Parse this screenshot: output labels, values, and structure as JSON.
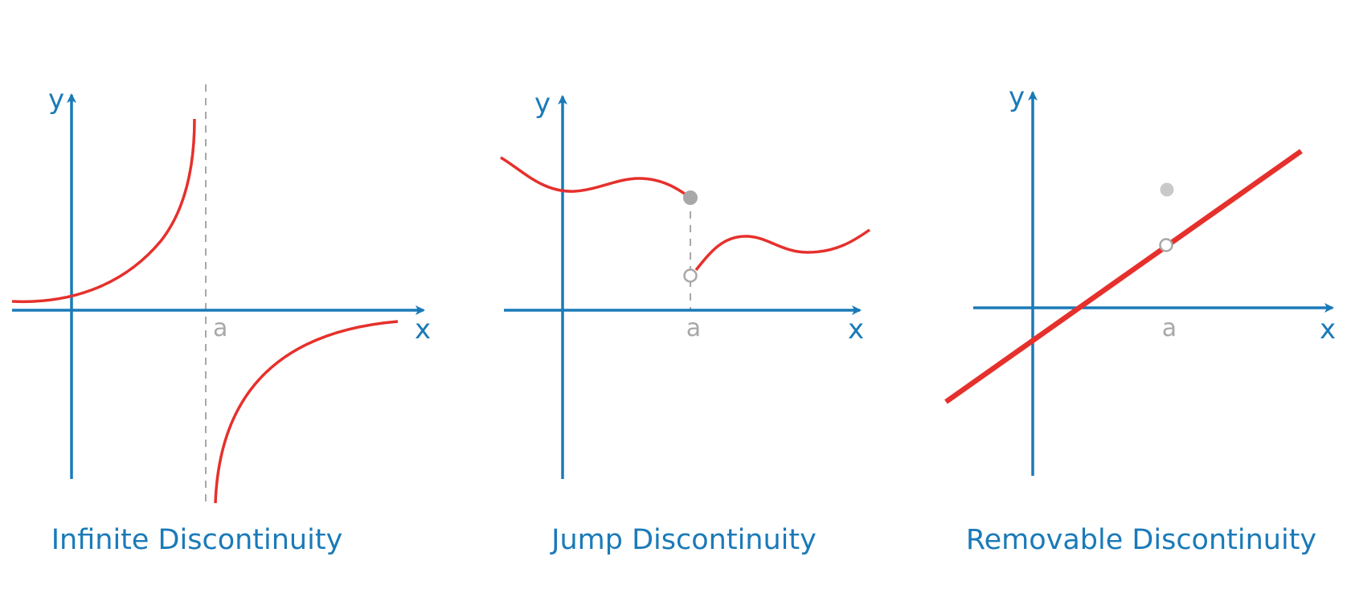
{
  "colors": {
    "axis": "#1a7ab8",
    "curve": "#e6302c",
    "guide": "#a8a8a8",
    "point": "#a8a8a8"
  },
  "panels": [
    {
      "caption": "Infinite Discontinuity",
      "x_label": "x",
      "y_label": "y",
      "tick_label": "a"
    },
    {
      "caption": "Jump Discontinuity",
      "x_label": "x",
      "y_label": "y",
      "tick_label": "a"
    },
    {
      "caption": "Removable Discontinuity",
      "x_label": "x",
      "y_label": "y",
      "tick_label": "a"
    }
  ]
}
